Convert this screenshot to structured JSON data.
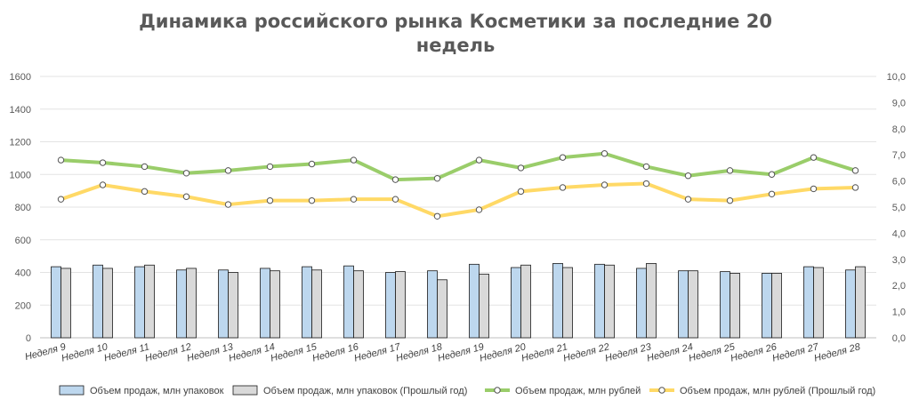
{
  "chart_data": {
    "type": "bar+line",
    "title_lines": [
      "Динамика российского рынка Косметики за последние 20",
      "недель"
    ],
    "categories": [
      "Неделя 9",
      "Неделя 10",
      "Неделя 11",
      "Неделя 12",
      "Неделя 13",
      "Неделя 14",
      "Неделя 15",
      "Неделя 16",
      "Неделя 17",
      "Неделя 18",
      "Неделя 19",
      "Неделя 20",
      "Неделя 21",
      "Неделя 22",
      "Неделя 23",
      "Неделя 24",
      "Неделя 25",
      "Неделя 26",
      "Неделя 27",
      "Неделя 28"
    ],
    "y_left": {
      "min": 0,
      "max": 1600,
      "ticks": [
        "0",
        "200",
        "400",
        "600",
        "800",
        "1000",
        "1200",
        "1400",
        "1600"
      ]
    },
    "y_right": {
      "min": 0,
      "max": 10,
      "ticks": [
        "0,0",
        "1,0",
        "2,0",
        "3,0",
        "4,0",
        "5,0",
        "6,0",
        "7,0",
        "8,0",
        "9,0",
        "10,0"
      ]
    },
    "series": [
      {
        "name": "Объем продаж, млн упаковок",
        "kind": "bar",
        "axis": "left",
        "color": "#bdd7ee",
        "values": [
          435,
          445,
          435,
          415,
          415,
          425,
          435,
          440,
          400,
          410,
          450,
          430,
          455,
          450,
          425,
          410,
          405,
          395,
          435,
          415
        ]
      },
      {
        "name": "Объем продаж, млн упаковок (Прошлый год)",
        "kind": "bar",
        "axis": "left",
        "color": "#d9d9d9",
        "values": [
          425,
          425,
          445,
          425,
          400,
          410,
          415,
          410,
          405,
          355,
          390,
          445,
          430,
          445,
          455,
          410,
          395,
          395,
          430,
          435
        ]
      },
      {
        "name": "Объем продаж, млн рублей",
        "kind": "line",
        "axis": "right",
        "color": "#9acd6a",
        "values": [
          6.8,
          6.7,
          6.55,
          6.3,
          6.4,
          6.55,
          6.65,
          6.8,
          6.05,
          6.1,
          6.8,
          6.5,
          6.9,
          7.05,
          6.55,
          6.2,
          6.4,
          6.25,
          6.9,
          6.4
        ]
      },
      {
        "name": "Объем продаж, млн рублей (Прошлый год)",
        "kind": "line",
        "axis": "right",
        "color": "#ffd966",
        "values": [
          5.3,
          5.85,
          5.6,
          5.4,
          5.1,
          5.25,
          5.25,
          5.3,
          5.3,
          4.65,
          4.9,
          5.6,
          5.75,
          5.85,
          5.9,
          5.3,
          5.25,
          5.5,
          5.7,
          5.75
        ]
      }
    ],
    "legend_position": "bottom"
  }
}
